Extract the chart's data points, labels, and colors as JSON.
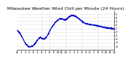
{
  "title": "Milwaukee Weather Wind Chill per Minute (24 Hours)",
  "dot_color": "#0000cc",
  "dot_size": 0.8,
  "bg_color": "#ffffff",
  "plot_bg_color": "#ffffff",
  "grid_color": "#aaaaaa",
  "ylim": [
    -5,
    6
  ],
  "yticks": [
    -4,
    -3,
    -2,
    -1,
    0,
    1,
    2,
    3,
    4,
    5
  ],
  "title_fontsize": 4.5,
  "tick_fontsize": 3.0,
  "num_points": 1440,
  "x_gridlines": [
    360,
    480,
    720,
    960,
    1200
  ],
  "wind_chill_curve": [
    0.5,
    0.3,
    0.1,
    -0.2,
    -0.5,
    -0.9,
    -1.3,
    -1.7,
    -2.1,
    -2.5,
    -2.9,
    -3.2,
    -3.5,
    -3.7,
    -3.9,
    -4.0,
    -4.05,
    -4.05,
    -4.0,
    -3.95,
    -3.85,
    -3.7,
    -3.5,
    -3.3,
    -3.0,
    -2.7,
    -2.4,
    -2.1,
    -1.8,
    -1.6,
    -1.5,
    -1.5,
    -1.6,
    -1.7,
    -1.8,
    -1.9,
    -1.85,
    -1.7,
    -1.5,
    -1.2,
    -0.8,
    -0.4,
    0.0,
    0.4,
    0.8,
    1.2,
    1.5,
    1.8,
    2.1,
    2.4,
    2.7,
    2.9,
    3.1,
    3.3,
    3.5,
    3.65,
    3.75,
    3.8,
    3.82,
    3.8,
    3.75,
    3.68,
    3.6,
    3.5,
    3.55,
    3.65,
    3.8,
    4.0,
    4.2,
    4.4,
    4.55,
    4.65,
    4.72,
    4.75,
    4.75,
    4.72,
    4.65,
    4.55,
    4.42,
    4.28,
    4.12,
    3.95,
    3.78,
    3.6,
    3.42,
    3.25,
    3.08,
    2.92,
    2.76,
    2.6,
    2.5,
    2.45,
    2.4,
    2.35,
    2.3,
    2.28,
    2.25,
    2.2,
    2.15,
    2.1,
    2.1,
    2.08,
    2.05,
    2.0,
    1.95,
    1.9,
    1.85,
    1.8,
    1.75,
    1.7,
    1.65,
    1.6,
    1.55,
    1.5,
    1.45,
    1.4,
    1.35,
    1.3,
    1.28,
    1.25,
    1.22,
    1.2,
    1.18,
    1.15,
    1.1,
    1.08,
    1.05,
    1.0,
    0.98,
    0.95
  ],
  "xtick_positions": [
    0,
    60,
    120,
    180,
    240,
    300,
    360,
    420,
    480,
    540,
    600,
    660,
    720,
    780,
    840,
    900,
    960,
    1020,
    1080,
    1140,
    1200,
    1260,
    1320,
    1380,
    1440
  ],
  "xtick_labels": [
    "12",
    "1",
    "2",
    "3",
    "4",
    "5",
    "6",
    "7",
    "8",
    "9",
    "10",
    "11",
    "12",
    "1",
    "2",
    "3",
    "4",
    "5",
    "6",
    "7",
    "8",
    "9",
    "10",
    "11",
    "12"
  ]
}
